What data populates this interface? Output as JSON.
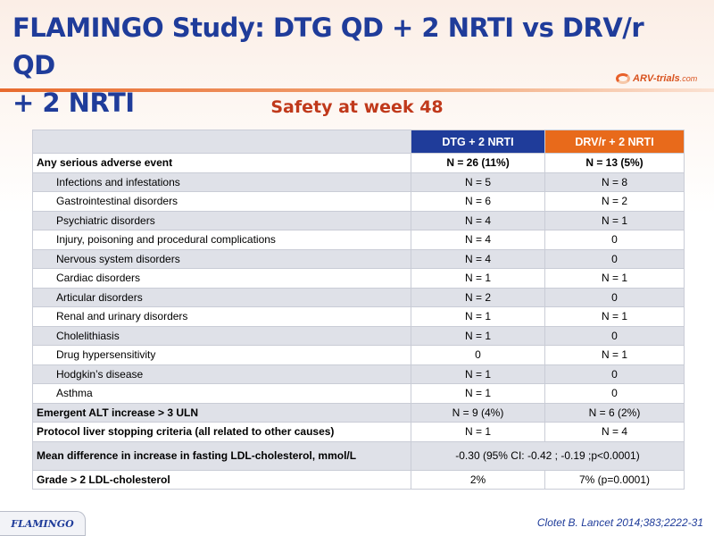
{
  "slide": {
    "title_line1": "FLAMINGO Study: DTG QD + 2 NRTI vs DRV/r QD",
    "title_line2": "+ 2 NRTI",
    "subtitle": "Safety at week 48",
    "logo_text": "ARV-trials",
    "logo_domain": ".com",
    "footer_badge": "FLAMINGO",
    "citation": "Clotet B. Lancet 2014;383;2222-31",
    "colors": {
      "title": "#1f3c9a",
      "subtitle": "#c0391b",
      "dtg_header": "#1f3c9a",
      "drv_header": "#e86a1b",
      "row_alt": "#dfe1e8"
    }
  },
  "table": {
    "headers": [
      "",
      "DTG + 2 NRTI",
      "DRV/r + 2 NRTI"
    ],
    "rows": [
      {
        "label": "Any serious adverse event",
        "dtg": "N = 26 (11%)",
        "drv": "N = 13 (5%)"
      },
      {
        "label": "Infections  and infestations",
        "dtg": "N = 5",
        "drv": "N = 8"
      },
      {
        "label": "Gastrointestinal disorders",
        "dtg": "N = 6",
        "drv": "N = 2"
      },
      {
        "label": "Psychiatric disorders",
        "dtg": "N = 4",
        "drv": "N = 1"
      },
      {
        "label": "Injury,  poisoning and procedural complications",
        "dtg": "N = 4",
        "drv": "0"
      },
      {
        "label": "Nervous system disorders",
        "dtg": "N = 4",
        "drv": "0"
      },
      {
        "label": "Cardiac disorders",
        "dtg": "N = 1",
        "drv": "N = 1"
      },
      {
        "label": "Articular disorders",
        "dtg": "N = 2",
        "drv": "0"
      },
      {
        "label": "Renal and urinary disorders",
        "dtg": "N = 1",
        "drv": "N = 1"
      },
      {
        "label": "Cholelithiasis",
        "dtg": "N = 1",
        "drv": "0"
      },
      {
        "label": "Drug hypersensitivity",
        "dtg": "0",
        "drv": "N = 1"
      },
      {
        "label": "Hodgkin’s disease",
        "dtg": "N = 1",
        "drv": "0"
      },
      {
        "label": "Asthma",
        "dtg": "N = 1",
        "drv": "0"
      },
      {
        "label": "Emergent ALT increase > 3 ULN",
        "dtg": "N = 9 (4%)",
        "drv": "N = 6 (2%)"
      },
      {
        "label": "Protocol liver stopping criteria (all related to other causes)",
        "dtg": "N = 1",
        "drv": "N = 4"
      },
      {
        "label": "Mean difference in increase in fasting LDL-cholesterol, mmol/L",
        "merged": "-0.30 (95% CI: -0.42 ; -0.19 ;p<0.0001)"
      },
      {
        "label": "Grade > 2 LDL-cholesterol",
        "dtg": "2%",
        "drv": "7% (p=0.0001)"
      }
    ]
  }
}
